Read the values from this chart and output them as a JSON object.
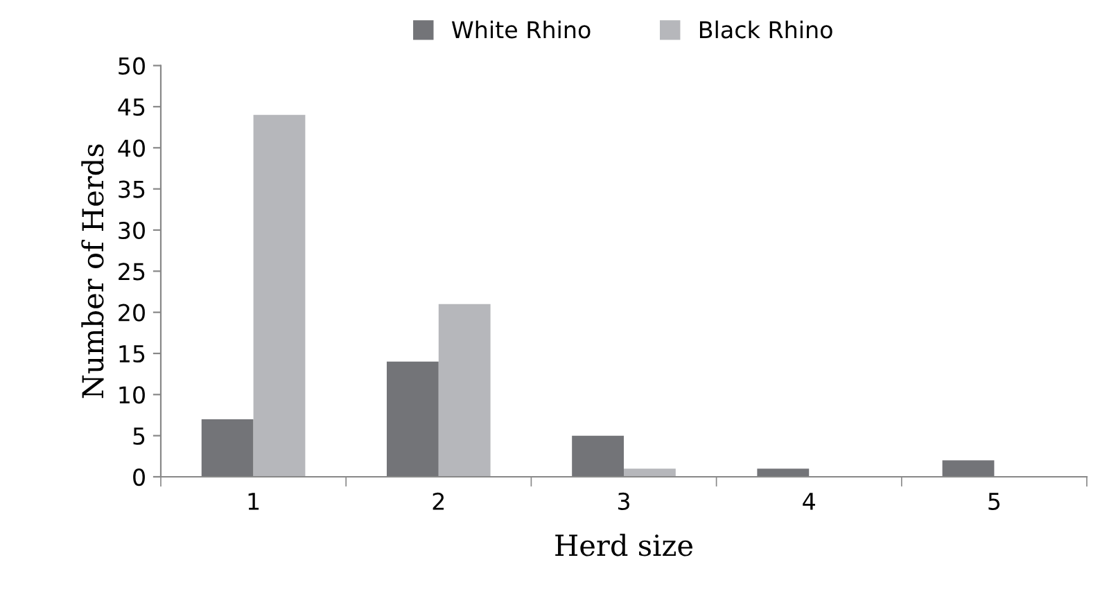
{
  "chart_data": {
    "type": "bar",
    "xlabel": "Herd size",
    "ylabel": "Number of Herds",
    "categories": [
      "1",
      "2",
      "3",
      "4",
      "5"
    ],
    "series": [
      {
        "name": "White Rhino",
        "color": "#737478",
        "values": [
          7,
          14,
          5,
          1,
          2
        ]
      },
      {
        "name": "Black Rhino",
        "color": "#b6b7bb",
        "values": [
          44,
          21,
          1,
          0,
          0
        ]
      }
    ],
    "ylim": [
      0,
      50
    ],
    "yticks": [
      0,
      5,
      10,
      15,
      20,
      25,
      30,
      35,
      40,
      45,
      50
    ],
    "grid": false,
    "legend": "top"
  }
}
